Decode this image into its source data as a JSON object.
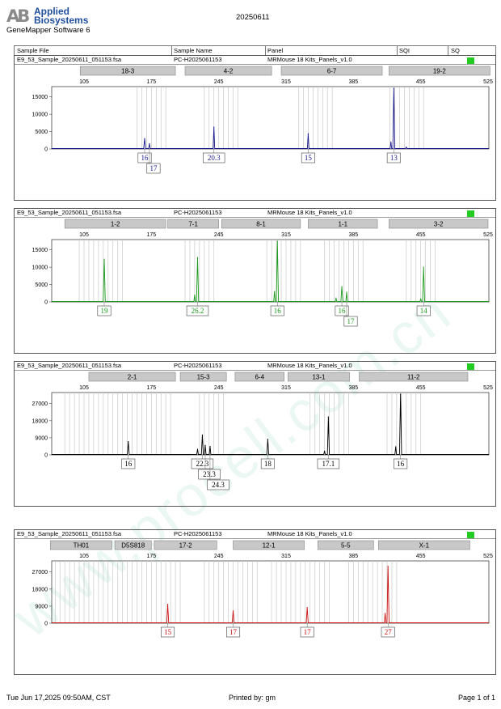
{
  "header": {
    "logo_mark": "AB",
    "logo_line1": "Applied",
    "logo_line2": "Biosystems",
    "software": "GeneMapper Software 6",
    "run_date": "20250611"
  },
  "columns": {
    "sample_file": "Sample File",
    "sample_name": "Sample Name",
    "panel": "Panel",
    "sqi": "SQI",
    "sq": "SQ"
  },
  "watermark": "www.procell.com.cn",
  "colors": {
    "blue": "#1a1a8c",
    "green": "#1a9a1a",
    "black": "#000000",
    "red": "#cc1111",
    "bin": "#c8c8c8",
    "marker": "#c8c8c8",
    "sq": "#22cc22"
  },
  "panels": [
    {
      "sample_file": "E9_53_Sample_20250611_051153.fsa",
      "sample_name": "PC-H2025061153",
      "panel": "MRMouse 18 Kits_Panels_v1.0",
      "dye": "blue",
      "markers": [
        {
          "name": "18-3",
          "start": 101,
          "end": 200
        },
        {
          "name": "4-2",
          "start": 210,
          "end": 300
        },
        {
          "name": "6-7",
          "start": 310,
          "end": 415
        },
        {
          "name": "19-2",
          "start": 422,
          "end": 527
        }
      ],
      "x_ticks": [
        105,
        175,
        245,
        315,
        385,
        455,
        525
      ],
      "y_ticks": [
        "15000",
        "10000",
        "5000",
        "0"
      ],
      "y_tick_values": [
        15000,
        10000,
        5000,
        0
      ],
      "y_max": 17500,
      "bins": [
        160,
        165,
        170,
        175,
        180,
        185,
        190,
        230,
        235,
        240,
        245,
        250,
        255,
        260,
        265,
        328,
        333,
        338,
        343,
        348,
        353,
        358,
        363,
        423,
        428,
        433,
        438,
        443,
        448,
        453,
        458
      ],
      "peaks": [
        {
          "x": 168,
          "h": 3000,
          "w": 1.2
        },
        {
          "x": 173,
          "h": 1500,
          "w": 1.0
        },
        {
          "x": 240,
          "h": 6300,
          "w": 1.0
        },
        {
          "x": 338,
          "h": 4400,
          "w": 1.0
        },
        {
          "x": 424,
          "h": 2000,
          "w": 1.0
        },
        {
          "x": 427,
          "h": 17500,
          "w": 1.2
        },
        {
          "x": 440,
          "h": 500,
          "w": 1.0
        }
      ],
      "allele_labels": [
        {
          "text": "16",
          "x": 168,
          "row": 0
        },
        {
          "text": "17",
          "x": 173,
          "row": 1
        },
        {
          "text": "20.3",
          "x": 240,
          "row": 0
        },
        {
          "text": "15",
          "x": 338,
          "row": 0
        },
        {
          "text": "13",
          "x": 427,
          "row": 0
        }
      ]
    },
    {
      "sample_file": "E9_53_Sample_20250611_051153.fsa",
      "sample_name": "PC-H2025061153",
      "panel": "MRMouse 18 Kits_Panels_v1.0",
      "dye": "green",
      "markers": [
        {
          "name": "1-2",
          "start": 85,
          "end": 190
        },
        {
          "name": "7-1",
          "start": 192,
          "end": 245
        },
        {
          "name": "8-1",
          "start": 248,
          "end": 330
        },
        {
          "name": "1-1",
          "start": 338,
          "end": 410
        },
        {
          "name": "3-2",
          "start": 422,
          "end": 525
        }
      ],
      "x_ticks": [
        105,
        175,
        245,
        315,
        385,
        455,
        525
      ],
      "y_ticks": [
        "15000",
        "10000",
        "5000",
        "0"
      ],
      "y_tick_values": [
        15000,
        10000,
        5000,
        0
      ],
      "y_max": 17500,
      "bins": [
        100,
        105,
        110,
        115,
        120,
        125,
        130,
        135,
        140,
        145,
        210,
        215,
        220,
        225,
        230,
        235,
        240,
        295,
        300,
        305,
        310,
        315,
        320,
        325,
        330,
        355,
        360,
        365,
        370,
        375,
        380,
        385,
        390,
        395,
        440,
        445,
        450,
        455,
        460,
        465,
        470
      ],
      "peaks": [
        {
          "x": 126,
          "h": 12300,
          "w": 1.3
        },
        {
          "x": 223,
          "h": 12800,
          "w": 1.3
        },
        {
          "x": 220,
          "h": 2000,
          "w": 1.0
        },
        {
          "x": 306,
          "h": 18000,
          "w": 1.3
        },
        {
          "x": 303,
          "h": 3000,
          "w": 1.0
        },
        {
          "x": 373,
          "h": 4400,
          "w": 1.2
        },
        {
          "x": 378,
          "h": 2800,
          "w": 1.0
        },
        {
          "x": 367,
          "h": 1000,
          "w": 1.0
        },
        {
          "x": 458,
          "h": 10000,
          "w": 1.3
        },
        {
          "x": 455,
          "h": 800,
          "w": 1.0
        }
      ],
      "allele_labels": [
        {
          "text": "19",
          "x": 126,
          "row": 0
        },
        {
          "text": "26.2",
          "x": 223,
          "row": 0
        },
        {
          "text": "16",
          "x": 306,
          "row": 0
        },
        {
          "text": "16",
          "x": 373,
          "row": 0
        },
        {
          "text": "17",
          "x": 378,
          "row": 1
        },
        {
          "text": "14",
          "x": 458,
          "row": 0
        }
      ]
    },
    {
      "sample_file": "E9_53_Sample_20250611_051153.fsa",
      "sample_name": "PC-H2025061153",
      "panel": "MRMouse 18 Kits_Panels_v1.0",
      "dye": "black",
      "markers": [
        {
          "name": "2-1",
          "start": 110,
          "end": 200
        },
        {
          "name": "15-3",
          "start": 205,
          "end": 253
        },
        {
          "name": "6-4",
          "start": 262,
          "end": 313
        },
        {
          "name": "13-1",
          "start": 317,
          "end": 381
        },
        {
          "name": "11-2",
          "start": 391,
          "end": 504
        }
      ],
      "x_ticks": [
        105,
        175,
        245,
        315,
        385,
        455,
        525
      ],
      "y_ticks": [
        "27000",
        "18000",
        "9000",
        "0"
      ],
      "y_tick_values": [
        27000,
        18000,
        9000,
        0
      ],
      "y_max": 32000,
      "bins": [
        85,
        90,
        95,
        100,
        105,
        110,
        115,
        120,
        125,
        130,
        135,
        140,
        145,
        150,
        155,
        160,
        165,
        170,
        175,
        180,
        185,
        190,
        195,
        225,
        230,
        235,
        240,
        245,
        250,
        340,
        345,
        350,
        355,
        360,
        365,
        370,
        375,
        380,
        420,
        425,
        430,
        435,
        440,
        445,
        450,
        455
      ],
      "peaks": [
        {
          "x": 151,
          "h": 7000,
          "w": 1.2
        },
        {
          "x": 223,
          "h": 3000,
          "w": 1.0
        },
        {
          "x": 228,
          "h": 10500,
          "w": 1.2
        },
        {
          "x": 231,
          "h": 5000,
          "w": 1.0
        },
        {
          "x": 236,
          "h": 4500,
          "w": 1.0
        },
        {
          "x": 296,
          "h": 8300,
          "w": 1.2
        },
        {
          "x": 355,
          "h": 2000,
          "w": 1.0
        },
        {
          "x": 359,
          "h": 20000,
          "w": 1.2
        },
        {
          "x": 429,
          "h": 4300,
          "w": 1.0
        },
        {
          "x": 434,
          "h": 32000,
          "w": 1.3
        }
      ],
      "allele_labels": [
        {
          "text": "16",
          "x": 151,
          "row": 0
        },
        {
          "text": "22.3",
          "x": 228,
          "row": 0
        },
        {
          "text": "23.3",
          "x": 231,
          "row": 1
        },
        {
          "text": "24.3",
          "x": 236,
          "row": 2
        },
        {
          "text": "18",
          "x": 296,
          "row": 0
        },
        {
          "text": "17.1",
          "x": 359,
          "row": 0
        },
        {
          "text": "16",
          "x": 434,
          "row": 0
        }
      ]
    },
    {
      "sample_file": "E9_53_Sample_20250611_051153.fsa",
      "sample_name": "PC-H2025061153",
      "panel": "MRMouse 18 Kits_Panels_v1.0",
      "dye": "red",
      "markers": [
        {
          "name": "TH01",
          "start": 70,
          "end": 134
        },
        {
          "name": "D5S818",
          "start": 137,
          "end": 175
        },
        {
          "name": "17-2",
          "start": 178,
          "end": 243
        },
        {
          "name": "12-1",
          "start": 260,
          "end": 334
        },
        {
          "name": "5-5",
          "start": 348,
          "end": 406
        },
        {
          "name": "X-1",
          "start": 411,
          "end": 506
        }
      ],
      "x_ticks": [
        105,
        175,
        245,
        315,
        385,
        455,
        525
      ],
      "y_ticks": [
        "27000",
        "18000",
        "9000",
        "0"
      ],
      "y_tick_values": [
        27000,
        18000,
        9000,
        0
      ],
      "y_max": 32000,
      "bins": [
        75,
        80,
        85,
        90,
        95,
        100,
        105,
        110,
        115,
        120,
        125,
        130,
        135,
        140,
        145,
        150,
        155,
        160,
        165,
        170,
        175,
        180,
        185,
        190,
        195,
        200,
        205,
        230,
        235,
        240,
        245,
        250,
        255,
        260,
        265,
        270,
        275,
        280,
        285,
        300,
        305,
        310,
        315,
        320,
        325,
        330,
        335,
        340,
        345,
        350,
        355,
        360,
        380,
        385,
        390,
        395,
        400,
        405,
        410,
        415,
        420,
        425,
        430
      ],
      "peaks": [
        {
          "x": 192,
          "h": 10000,
          "w": 1.2
        },
        {
          "x": 260,
          "h": 6500,
          "w": 1.2
        },
        {
          "x": 337,
          "h": 8200,
          "w": 1.2
        },
        {
          "x": 418,
          "h": 5200,
          "w": 1.0
        },
        {
          "x": 421,
          "h": 30000,
          "w": 1.3
        }
      ],
      "allele_labels": [
        {
          "text": "15",
          "x": 192,
          "row": 0
        },
        {
          "text": "17",
          "x": 260,
          "row": 0
        },
        {
          "text": "17",
          "x": 337,
          "row": 0
        },
        {
          "text": "27",
          "x": 421,
          "row": 0
        }
      ]
    }
  ],
  "footer": {
    "timestamp": "Tue Jun 17,2025 09:50AM, CST",
    "printed_by": "Printed by: gm",
    "page": "Page 1 of 1"
  },
  "chart_data": [
    {
      "type": "line",
      "series": [
        {
          "name": "",
          "x": [
            168,
            173,
            240,
            338,
            424,
            427,
            440
          ],
          "values": [
            3000,
            1500,
            6300,
            4400,
            2000,
            17500,
            500
          ]
        }
      ],
      "xlabel": "",
      "ylabel": "",
      "xlim": [
        85,
        525
      ],
      "ylim": [
        0,
        17500
      ]
    },
    {
      "type": "line",
      "series": [
        {
          "name": "",
          "x": [
            126,
            220,
            223,
            303,
            306,
            367,
            373,
            378,
            455,
            458
          ],
          "values": [
            12300,
            2000,
            12800,
            3000,
            18000,
            1000,
            4400,
            2800,
            800,
            10000
          ]
        }
      ],
      "xlabel": "",
      "ylabel": "",
      "xlim": [
        85,
        525
      ],
      "ylim": [
        0,
        17500
      ]
    },
    {
      "type": "line",
      "series": [
        {
          "name": "",
          "x": [
            151,
            223,
            228,
            231,
            236,
            296,
            355,
            359,
            429,
            434
          ],
          "values": [
            7000,
            3000,
            10500,
            5000,
            4500,
            8300,
            2000,
            20000,
            4300,
            32000
          ]
        }
      ],
      "xlabel": "",
      "ylabel": "",
      "xlim": [
        85,
        525
      ],
      "ylim": [
        0,
        32000
      ]
    },
    {
      "type": "line",
      "series": [
        {
          "name": "",
          "x": [
            192,
            260,
            337,
            418,
            421
          ],
          "values": [
            10000,
            6500,
            8200,
            5200,
            30000
          ]
        }
      ],
      "xlabel": "",
      "ylabel": "",
      "xlim": [
        85,
        525
      ],
      "ylim": [
        0,
        32000
      ]
    }
  ]
}
